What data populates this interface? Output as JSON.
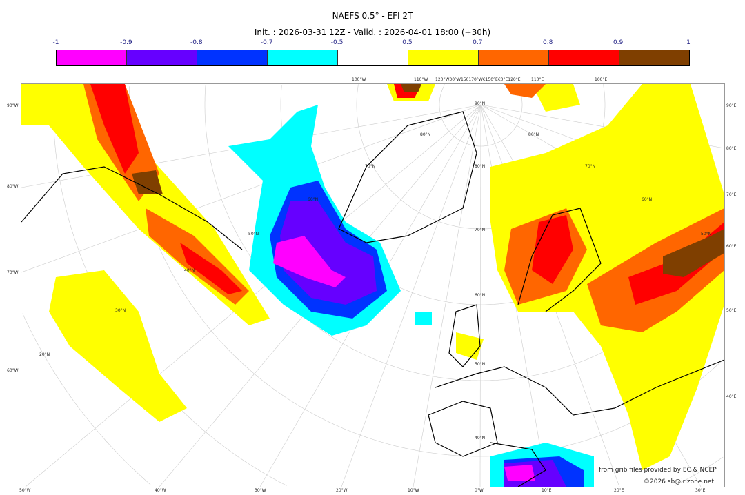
{
  "title": "NAEFS 0.5° - EFI 2T",
  "subtitle": "Init. : 2026-03-31 12Z - Valid. : 2026-04-01 18:00 (+30h)",
  "colorbar": {
    "ticks": [
      "-1",
      "-0.9",
      "-0.8",
      "-0.7",
      "-0.5",
      "0.5",
      "0.7",
      "0.8",
      "0.9",
      "1"
    ],
    "colors": [
      "#ff00ff",
      "#6600ff",
      "#0033ff",
      "#00ffff",
      "#ffffff",
      "#ffff00",
      "#ff6600",
      "#ff0000",
      "#7f3f00"
    ]
  },
  "axis_labels": {
    "left": [
      "90°W",
      "80°W",
      "70°W",
      "60°W"
    ],
    "right": [
      "90°E",
      "80°E",
      "70°E",
      "60°E",
      "50°E",
      "40°E"
    ],
    "bottom": [
      "50°W",
      "40°W",
      "30°W",
      "20°W",
      "10°W",
      "0°W",
      "10°E",
      "20°E",
      "30°E"
    ],
    "top": [
      "100°W",
      "110°W",
      "120°W30°W150170°W€150°E€0°E120°E",
      "110°E",
      "100°E"
    ],
    "lat": [
      "90°N",
      "80°N",
      "70°N",
      "60°N",
      "50°N",
      "40°N",
      "30°N",
      "20°N",
      "80°N",
      "70°N",
      "60°N",
      "50°N",
      "80°N",
      "70°N",
      "60°N",
      "50°N",
      "40°N"
    ]
  },
  "credits": {
    "source": "from grib files provided by EC & NCEP",
    "copyright": "©2026 sb@irizone.net"
  }
}
